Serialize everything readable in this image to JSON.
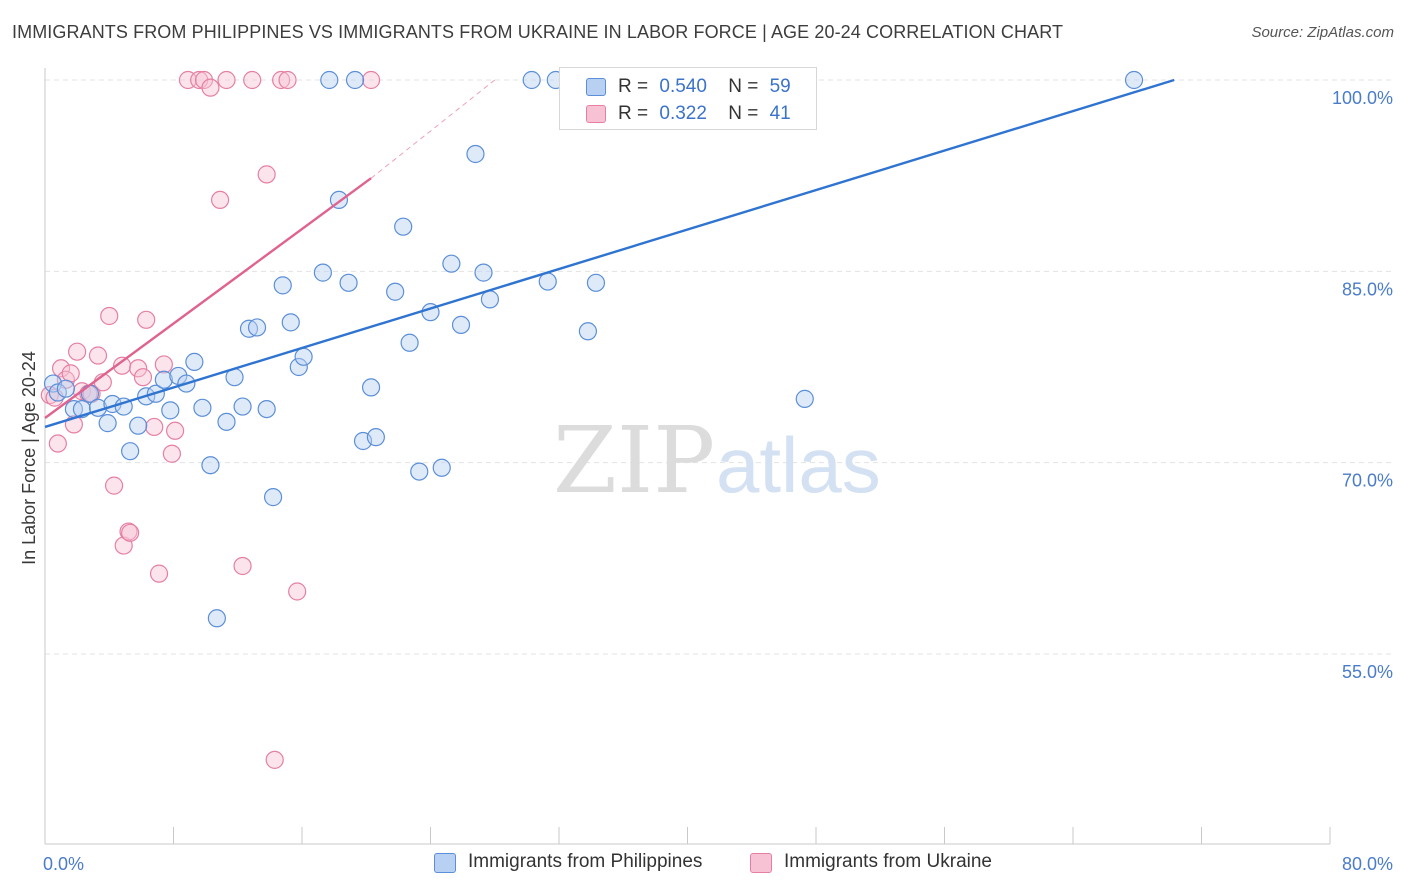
{
  "title": "IMMIGRANTS FROM PHILIPPINES VS IMMIGRANTS FROM UKRAINE IN LABOR FORCE | AGE 20-24 CORRELATION CHART",
  "source": "Source: ZipAtlas.com",
  "watermark": {
    "zip": "ZIP",
    "atlas": "atlas"
  },
  "legend": {
    "rows": [
      {
        "r_label": "R =",
        "r_value": "0.540",
        "n_label": "N =",
        "n_value": "59"
      },
      {
        "r_label": "R =",
        "r_value": "0.322",
        "n_label": "N =",
        "n_value": "41"
      }
    ]
  },
  "colors": {
    "philippines_fill": "#b8d0f2",
    "philippines_stroke": "#5b8fd8",
    "philippines_line": "#2f74d0",
    "ukraine_fill": "#f7c3d4",
    "ukraine_stroke": "#e67fa3",
    "ukraine_line": "#e0628f",
    "grid": "#e3e3e3",
    "tick_label": "#4a7cc9"
  },
  "chart_data": {
    "type": "scatter",
    "title": "IMMIGRANTS FROM PHILIPPINES VS IMMIGRANTS FROM UKRAINE IN LABOR FORCE | AGE 20-24 CORRELATION CHART",
    "xlabel": "",
    "ylabel": "In Labor Force | Age 20-24",
    "xlim": [
      0,
      80
    ],
    "ylim": [
      40,
      101
    ],
    "x_tick_labels": [
      "0.0%",
      "80.0%"
    ],
    "y_ticks": [
      55,
      70,
      85,
      100
    ],
    "y_tick_labels": [
      "55.0%",
      "70.0%",
      "85.0%",
      "100.0%"
    ],
    "grid": true,
    "legend_position": "top-center",
    "series": [
      {
        "name": "Immigrants from Philippines",
        "r": 0.54,
        "n": 59,
        "trend": {
          "x": [
            0,
            70.3
          ],
          "y": [
            72.8,
            100.0
          ]
        },
        "points": [
          [
            0.5,
            76.2
          ],
          [
            0.8,
            75.5
          ],
          [
            1.3,
            75.8
          ],
          [
            1.8,
            74.2
          ],
          [
            2.3,
            74.2
          ],
          [
            2.8,
            75.4
          ],
          [
            3.3,
            74.3
          ],
          [
            3.9,
            73.1
          ],
          [
            4.2,
            74.6
          ],
          [
            4.9,
            74.4
          ],
          [
            5.3,
            70.9
          ],
          [
            5.8,
            72.9
          ],
          [
            6.3,
            75.2
          ],
          [
            6.9,
            75.4
          ],
          [
            7.4,
            76.5
          ],
          [
            7.8,
            74.1
          ],
          [
            8.3,
            76.8
          ],
          [
            8.8,
            76.2
          ],
          [
            9.3,
            77.9
          ],
          [
            9.8,
            74.3
          ],
          [
            10.3,
            69.8
          ],
          [
            10.7,
            57.8
          ],
          [
            11.3,
            73.2
          ],
          [
            11.8,
            76.7
          ],
          [
            12.3,
            74.4
          ],
          [
            12.7,
            80.5
          ],
          [
            13.2,
            80.6
          ],
          [
            13.8,
            74.2
          ],
          [
            14.2,
            67.3
          ],
          [
            14.8,
            83.9
          ],
          [
            15.3,
            81.0
          ],
          [
            15.8,
            77.5
          ],
          [
            16.1,
            78.3
          ],
          [
            17.3,
            84.9
          ],
          [
            17.7,
            100.0
          ],
          [
            18.3,
            90.6
          ],
          [
            18.9,
            84.1
          ],
          [
            19.3,
            100.0
          ],
          [
            19.8,
            71.7
          ],
          [
            20.3,
            75.9
          ],
          [
            20.6,
            72.0
          ],
          [
            21.8,
            83.4
          ],
          [
            22.3,
            88.5
          ],
          [
            22.7,
            79.4
          ],
          [
            23.3,
            69.3
          ],
          [
            24.0,
            81.8
          ],
          [
            24.7,
            69.6
          ],
          [
            25.3,
            85.6
          ],
          [
            25.9,
            80.8
          ],
          [
            26.8,
            94.2
          ],
          [
            27.3,
            84.9
          ],
          [
            27.7,
            82.8
          ],
          [
            30.3,
            100.0
          ],
          [
            31.3,
            84.2
          ],
          [
            31.8,
            100.0
          ],
          [
            33.8,
            80.3
          ],
          [
            34.3,
            84.1
          ],
          [
            47.3,
            75.0
          ],
          [
            67.8,
            100.0
          ]
        ]
      },
      {
        "name": "Immigrants from Ukraine",
        "r": 0.322,
        "n": 41,
        "trend": {
          "x": [
            0,
            20.3
          ],
          "y": [
            73.5,
            92.3
          ]
        },
        "trend_dashed": {
          "x": [
            20.3,
            28.0
          ],
          "y": [
            92.3,
            100.0
          ]
        },
        "points": [
          [
            0.3,
            75.3
          ],
          [
            0.6,
            75.1
          ],
          [
            0.8,
            71.5
          ],
          [
            1.0,
            77.4
          ],
          [
            1.3,
            76.5
          ],
          [
            1.6,
            77.0
          ],
          [
            1.8,
            73.0
          ],
          [
            2.0,
            78.7
          ],
          [
            2.3,
            75.6
          ],
          [
            2.7,
            75.4
          ],
          [
            2.9,
            75.4
          ],
          [
            3.3,
            78.4
          ],
          [
            3.6,
            76.3
          ],
          [
            4.0,
            81.5
          ],
          [
            4.3,
            68.2
          ],
          [
            4.8,
            77.6
          ],
          [
            4.9,
            63.5
          ],
          [
            5.2,
            64.6
          ],
          [
            5.3,
            64.5
          ],
          [
            5.8,
            77.4
          ],
          [
            6.1,
            76.7
          ],
          [
            6.3,
            81.2
          ],
          [
            6.8,
            72.8
          ],
          [
            7.1,
            61.3
          ],
          [
            7.4,
            77.7
          ],
          [
            7.9,
            70.7
          ],
          [
            8.1,
            72.5
          ],
          [
            8.9,
            100.0
          ],
          [
            9.6,
            100.0
          ],
          [
            9.9,
            100.0
          ],
          [
            10.3,
            99.4
          ],
          [
            10.9,
            90.6
          ],
          [
            11.3,
            100.0
          ],
          [
            12.3,
            61.9
          ],
          [
            12.9,
            100.0
          ],
          [
            13.8,
            92.6
          ],
          [
            14.3,
            46.7
          ],
          [
            14.7,
            100.0
          ],
          [
            15.1,
            100.0
          ],
          [
            15.7,
            59.9
          ],
          [
            20.3,
            100.0
          ]
        ]
      }
    ]
  }
}
